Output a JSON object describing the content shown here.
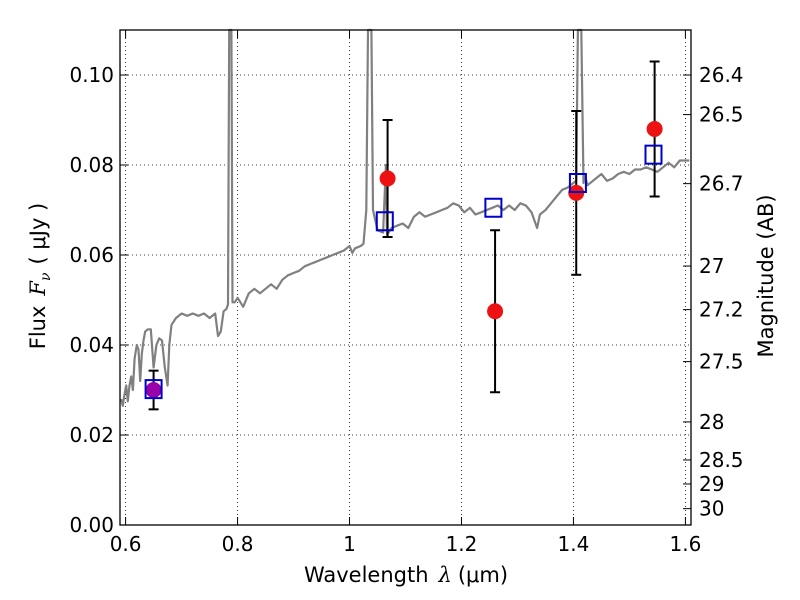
{
  "chart_data": {
    "type": "scatter",
    "xlabel_text": "Wavelength",
    "xlabel_symbol": "λ",
    "xlabel_unit": "(μm)",
    "ylabel_text": "Flux",
    "ylabel_symbol": "F",
    "ylabel_sub": "ν",
    "ylabel_unit": "( μJy )",
    "y2label": "Magnitude (AB)",
    "xlim": [
      0.59,
      1.61
    ],
    "ylim": [
      0.0,
      0.11
    ],
    "grid": true,
    "x_ticks": [
      {
        "value": 0.6,
        "label": "0.6"
      },
      {
        "value": 0.8,
        "label": "0.8"
      },
      {
        "value": 1.0,
        "label": "1"
      },
      {
        "value": 1.2,
        "label": "1.2"
      },
      {
        "value": 1.4,
        "label": "1.4"
      },
      {
        "value": 1.6,
        "label": "1.6"
      }
    ],
    "y_ticks": [
      {
        "value": 0.0,
        "label": "0.00"
      },
      {
        "value": 0.02,
        "label": "0.02"
      },
      {
        "value": 0.04,
        "label": "0.04"
      },
      {
        "value": 0.06,
        "label": "0.06"
      },
      {
        "value": 0.08,
        "label": "0.08"
      },
      {
        "value": 0.1,
        "label": "0.10"
      }
    ],
    "y2_ticks": [
      {
        "mag": 26.4,
        "label": "26.4"
      },
      {
        "mag": 26.5,
        "label": "26.5"
      },
      {
        "mag": 26.7,
        "label": "26.7"
      },
      {
        "mag": 27.0,
        "label": "27"
      },
      {
        "mag": 27.2,
        "label": "27.2"
      },
      {
        "mag": 27.5,
        "label": "27.5"
      },
      {
        "mag": 28.0,
        "label": "28"
      },
      {
        "mag": 28.5,
        "label": "28.5"
      },
      {
        "mag": 29.0,
        "label": "29"
      },
      {
        "mag": 30.0,
        "label": "30"
      }
    ],
    "model_spectrum": {
      "color": "#808080",
      "points": [
        [
          0.592,
          0.028
        ],
        [
          0.595,
          0.0265
        ],
        [
          0.598,
          0.029
        ],
        [
          0.601,
          0.031
        ],
        [
          0.604,
          0.0275
        ],
        [
          0.607,
          0.031
        ],
        [
          0.61,
          0.033
        ],
        [
          0.613,
          0.03
        ],
        [
          0.616,
          0.037
        ],
        [
          0.62,
          0.04
        ],
        [
          0.623,
          0.039
        ],
        [
          0.626,
          0.032
        ],
        [
          0.629,
          0.038
        ],
        [
          0.632,
          0.041
        ],
        [
          0.635,
          0.043
        ],
        [
          0.64,
          0.0435
        ],
        [
          0.645,
          0.0435
        ],
        [
          0.65,
          0.035
        ],
        [
          0.655,
          0.04
        ],
        [
          0.66,
          0.0415
        ],
        [
          0.665,
          0.041
        ],
        [
          0.67,
          0.035
        ],
        [
          0.675,
          0.031
        ],
        [
          0.678,
          0.04
        ],
        [
          0.682,
          0.0445
        ],
        [
          0.69,
          0.046
        ],
        [
          0.7,
          0.047
        ],
        [
          0.71,
          0.0465
        ],
        [
          0.72,
          0.047
        ],
        [
          0.73,
          0.0465
        ],
        [
          0.74,
          0.047
        ],
        [
          0.75,
          0.046
        ],
        [
          0.76,
          0.047
        ],
        [
          0.765,
          0.042
        ],
        [
          0.77,
          0.043
        ],
        [
          0.775,
          0.0475
        ],
        [
          0.78,
          0.048
        ],
        [
          0.783,
          0.049
        ],
        [
          0.785,
          0.11
        ],
        [
          0.789,
          0.11
        ],
        [
          0.791,
          0.0495
        ],
        [
          0.795,
          0.0495
        ],
        [
          0.8,
          0.0505
        ],
        [
          0.81,
          0.0485
        ],
        [
          0.82,
          0.0515
        ],
        [
          0.83,
          0.0525
        ],
        [
          0.84,
          0.0515
        ],
        [
          0.85,
          0.0525
        ],
        [
          0.86,
          0.0535
        ],
        [
          0.87,
          0.0525
        ],
        [
          0.88,
          0.0545
        ],
        [
          0.89,
          0.0555
        ],
        [
          0.9,
          0.056
        ],
        [
          0.91,
          0.0565
        ],
        [
          0.92,
          0.0575
        ],
        [
          0.93,
          0.058
        ],
        [
          0.94,
          0.0585
        ],
        [
          0.95,
          0.059
        ],
        [
          0.96,
          0.0595
        ],
        [
          0.97,
          0.06
        ],
        [
          0.98,
          0.0605
        ],
        [
          0.99,
          0.061
        ],
        [
          1.0,
          0.062
        ],
        [
          1.005,
          0.0605
        ],
        [
          1.01,
          0.0615
        ],
        [
          1.02,
          0.062
        ],
        [
          1.025,
          0.0625
        ],
        [
          1.03,
          0.07
        ],
        [
          1.033,
          0.11
        ],
        [
          1.039,
          0.11
        ],
        [
          1.042,
          0.07
        ],
        [
          1.05,
          0.0655
        ],
        [
          1.06,
          0.065
        ],
        [
          1.065,
          0.08
        ],
        [
          1.067,
          0.0645
        ],
        [
          1.075,
          0.066
        ],
        [
          1.085,
          0.0665
        ],
        [
          1.095,
          0.067
        ],
        [
          1.105,
          0.066
        ],
        [
          1.115,
          0.0685
        ],
        [
          1.125,
          0.0695
        ],
        [
          1.135,
          0.0685
        ],
        [
          1.145,
          0.069
        ],
        [
          1.155,
          0.0695
        ],
        [
          1.165,
          0.07
        ],
        [
          1.175,
          0.0705
        ],
        [
          1.185,
          0.0715
        ],
        [
          1.195,
          0.071
        ],
        [
          1.205,
          0.0695
        ],
        [
          1.215,
          0.0705
        ],
        [
          1.225,
          0.069
        ],
        [
          1.235,
          0.0695
        ],
        [
          1.245,
          0.07
        ],
        [
          1.255,
          0.0705
        ],
        [
          1.265,
          0.071
        ],
        [
          1.275,
          0.07
        ],
        [
          1.285,
          0.071
        ],
        [
          1.295,
          0.07
        ],
        [
          1.305,
          0.0715
        ],
        [
          1.315,
          0.071
        ],
        [
          1.325,
          0.0695
        ],
        [
          1.335,
          0.066
        ],
        [
          1.34,
          0.069
        ],
        [
          1.35,
          0.07
        ],
        [
          1.36,
          0.0715
        ],
        [
          1.37,
          0.073
        ],
        [
          1.38,
          0.0745
        ],
        [
          1.39,
          0.075
        ],
        [
          1.4,
          0.076
        ],
        [
          1.405,
          0.0765
        ],
        [
          1.408,
          0.11
        ],
        [
          1.414,
          0.11
        ],
        [
          1.418,
          0.076
        ],
        [
          1.42,
          0.078
        ],
        [
          1.425,
          0.0755
        ],
        [
          1.44,
          0.077
        ],
        [
          1.45,
          0.078
        ],
        [
          1.46,
          0.0765
        ],
        [
          1.47,
          0.077
        ],
        [
          1.48,
          0.078
        ],
        [
          1.49,
          0.0785
        ],
        [
          1.5,
          0.078
        ],
        [
          1.51,
          0.079
        ],
        [
          1.52,
          0.079
        ],
        [
          1.53,
          0.0795
        ],
        [
          1.54,
          0.079
        ],
        [
          1.55,
          0.0785
        ],
        [
          1.56,
          0.0795
        ],
        [
          1.57,
          0.0805
        ],
        [
          1.58,
          0.0795
        ],
        [
          1.59,
          0.081
        ],
        [
          1.6,
          0.081
        ],
        [
          1.607,
          0.081
        ]
      ]
    },
    "series": [
      {
        "name": "",
        "marker": "circle",
        "color": "#ee1111",
        "points": [
          {
            "x": 0.65,
            "y": 0.03,
            "err": 0.0043,
            "color": "#9900aa"
          },
          {
            "x": 1.068,
            "y": 0.077,
            "err": 0.013
          },
          {
            "x": 1.26,
            "y": 0.0475,
            "err": 0.018
          },
          {
            "x": 1.405,
            "y": 0.0738,
            "err": 0.0182
          },
          {
            "x": 1.545,
            "y": 0.088,
            "err": 0.015
          }
        ]
      },
      {
        "name": "",
        "marker": "square-open",
        "color": "#0000cc",
        "points": [
          {
            "x": 0.65,
            "y": 0.0302
          },
          {
            "x": 1.063,
            "y": 0.0675
          },
          {
            "x": 1.257,
            "y": 0.0705
          },
          {
            "x": 1.408,
            "y": 0.076
          },
          {
            "x": 1.543,
            "y": 0.0823
          }
        ]
      }
    ]
  }
}
